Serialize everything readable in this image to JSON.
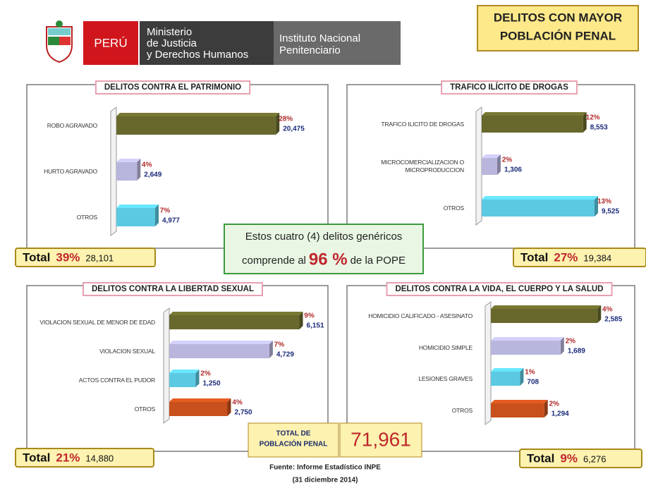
{
  "header": {
    "country": "PERÚ",
    "ministry": [
      "Ministerio",
      "de Justicia",
      "y Derechos Humanos"
    ],
    "institute": [
      "Instituto Nacional",
      "Penitenciario"
    ]
  },
  "banner": [
    "DELITOS CON MAYOR",
    "POBLACIÓN  PENAL"
  ],
  "chart_data": [
    {
      "type": "bar",
      "orientation": "horizontal",
      "title": "DELITOS CONTRA EL PATRIMONIO",
      "categories": [
        "ROBO AGRAVADO",
        "HURTO AGRAVADO",
        "OTROS"
      ],
      "values": [
        20475,
        2649,
        4977
      ],
      "value_labels": [
        "20,475",
        "2,649",
        "4,977"
      ],
      "shares": [
        28,
        4,
        7
      ],
      "share_labels": [
        "28%",
        "4%",
        "7%"
      ],
      "colors": [
        "#68682c",
        "#b8b6dc",
        "#5cc9e2"
      ],
      "xlim": [
        0,
        21000
      ],
      "total": {
        "label": "Total",
        "share": 39,
        "share_label": "39%",
        "value": 28101,
        "value_label": "28,101"
      }
    },
    {
      "type": "bar",
      "orientation": "horizontal",
      "title": "TRAFICO ILÍCITO DE DROGAS",
      "categories": [
        "TRAFICO ILICITO DE DROGAS",
        "MICROCOMERCIALIZACION O MICROPRODUCCION",
        "OTROS"
      ],
      "values": [
        8553,
        1306,
        9525
      ],
      "value_labels": [
        "8,553",
        "1,306",
        "9,525"
      ],
      "shares": [
        12,
        2,
        13
      ],
      "share_labels": [
        "12%",
        "2%",
        "13%"
      ],
      "colors": [
        "#68682c",
        "#b8b6dc",
        "#5cc9e2"
      ],
      "xlim": [
        0,
        10000
      ],
      "total": {
        "label": "Total",
        "share": 27,
        "share_label": "27%",
        "value": 19384,
        "value_label": "19,384"
      }
    },
    {
      "type": "bar",
      "orientation": "horizontal",
      "title": "DELITOS CONTRA LA LIBERTAD SEXUAL",
      "categories": [
        "VIOLACION SEXUAL DE MENOR DE EDAD",
        "VIOLACION SEXUAL",
        "ACTOS CONTRA EL PUDOR",
        "OTROS"
      ],
      "values": [
        6151,
        4729,
        1250,
        2750
      ],
      "value_labels": [
        "6,151",
        "4,729",
        "1,250",
        "2,750"
      ],
      "shares": [
        9,
        7,
        2,
        4
      ],
      "share_labels": [
        "9%",
        "7%",
        "2%",
        "4%"
      ],
      "colors": [
        "#68682c",
        "#b8b6dc",
        "#5cc9e2",
        "#c8501c"
      ],
      "xlim": [
        0,
        6500
      ],
      "total": {
        "label": "Total",
        "share": 21,
        "share_label": "21%",
        "value": 14880,
        "value_label": "14,880"
      }
    },
    {
      "type": "bar",
      "orientation": "horizontal",
      "title": "DELITOS CONTRA LA VIDA, EL CUERPO Y LA SALUD",
      "categories": [
        "HOMICIDIO CALIFICADO - ASESINATO",
        "HOMICIDIO SIMPLE",
        "LESIONES GRAVES",
        "OTROS"
      ],
      "values": [
        2585,
        1689,
        708,
        1294
      ],
      "value_labels": [
        "2,585",
        "1,689",
        "708",
        "1,294"
      ],
      "shares": [
        4,
        2,
        1,
        2
      ],
      "share_labels": [
        "4%",
        "2%",
        "1%",
        "2%"
      ],
      "colors": [
        "#68682c",
        "#b8b6dc",
        "#5cc9e2",
        "#c8501c"
      ],
      "xlim": [
        0,
        2700
      ],
      "total": {
        "label": "Total",
        "share": 9,
        "share_label": "9%",
        "value": 6276,
        "value_label": "6,276"
      }
    }
  ],
  "summary": {
    "line1": "Estos cuatro (4) delitos genéricos",
    "pre": "comprende al",
    "percent": 96,
    "percent_label": "96 %",
    "post": "de la POPE"
  },
  "grand_total": {
    "label": [
      "TOTAL DE",
      "POBLACIÓN PENAL"
    ],
    "value": 71961,
    "value_label": "71,961"
  },
  "source": [
    "Fuente: Informe Estadístico INPE",
    "(31 diciembre 2014)"
  ]
}
